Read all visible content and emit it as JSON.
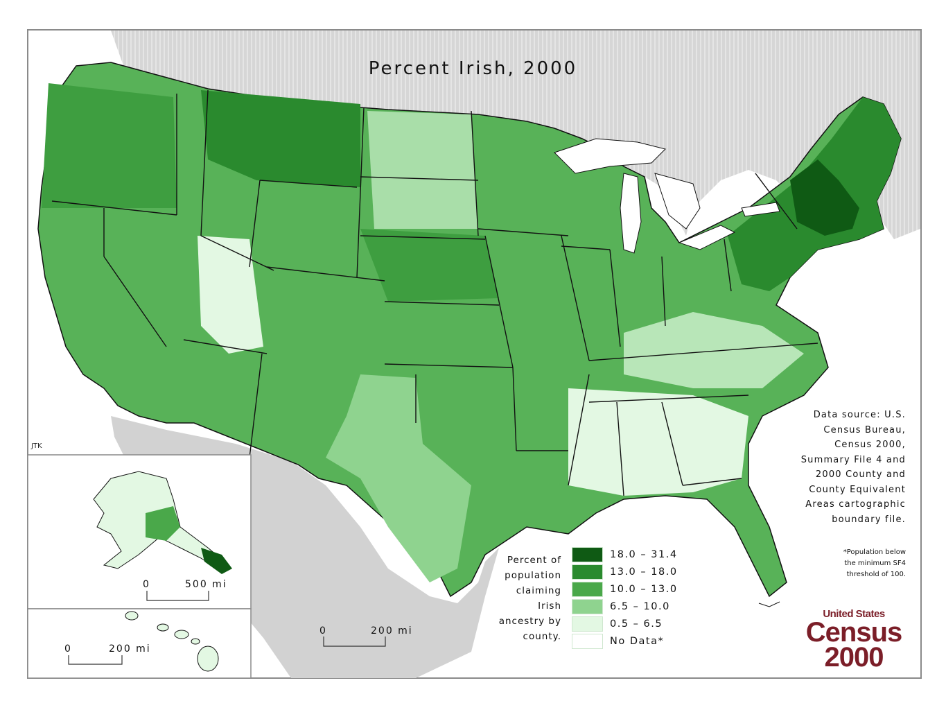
{
  "map": {
    "title": "Percent Irish, 2000",
    "credit": "JTK",
    "source_lines": [
      "Data source:  U.S.",
      "Census Bureau,",
      "Census 2000,",
      "Summary File 4 and",
      "2000 County and",
      "County Equivalent",
      "Areas cartographic",
      "boundary file."
    ],
    "footnote_lines": [
      "*Population below",
      "the minimum SF4",
      "threshold of 100."
    ]
  },
  "legend": {
    "caption_lines": [
      "Percent of",
      "population",
      "claiming",
      "Irish",
      "ancestry by",
      "county."
    ],
    "classes": [
      {
        "label": "18.0 – 31.4",
        "color": "#0f5a14"
      },
      {
        "label": "13.0 – 18.0",
        "color": "#2a8a2e"
      },
      {
        "label": "10.0 – 13.0",
        "color": "#4aa84a"
      },
      {
        "label": "6.5 – 10.0",
        "color": "#8fd38f"
      },
      {
        "label": "0.5 – 6.5",
        "color": "#e3f8e3"
      },
      {
        "label": "No Data*",
        "color": "#ffffff"
      }
    ]
  },
  "scales": {
    "main": {
      "zero": "0",
      "value": "200 mi"
    },
    "alaska": {
      "zero": "0",
      "value": "500 mi"
    },
    "hawaii": {
      "zero": "0",
      "value": "200 mi"
    }
  },
  "logo": {
    "line1": "United States",
    "line2": "Census",
    "line3": "2000"
  },
  "colors": {
    "water": "#ffffff",
    "foreign_land": "#d0d0d0",
    "border": "#111111"
  }
}
